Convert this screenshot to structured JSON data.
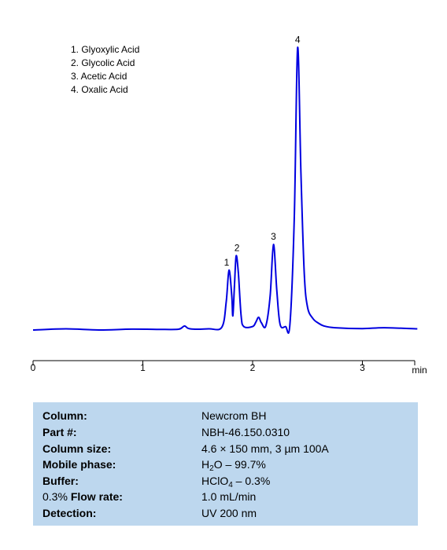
{
  "chart_data": {
    "type": "line",
    "xlabel": "min",
    "xlim": [
      0,
      3.5
    ],
    "ylim": [
      0,
      1
    ],
    "x_ticks": [
      "0",
      "1",
      "2",
      "3"
    ],
    "series": [
      {
        "color": "#0000e0",
        "x": [
          0.0,
          0.3,
          0.6,
          0.9,
          1.2,
          1.33,
          1.38,
          1.43,
          1.6,
          1.72,
          1.76,
          1.785,
          1.81,
          1.82,
          1.835,
          1.85,
          1.87,
          1.895,
          1.92,
          2.0,
          2.03,
          2.055,
          2.08,
          2.12,
          2.16,
          2.19,
          2.22,
          2.25,
          2.3,
          2.34,
          2.38,
          2.41,
          2.44,
          2.47,
          2.5,
          2.55,
          2.6,
          2.65,
          2.75,
          3.0,
          3.2,
          3.5
        ],
        "y": [
          0.0,
          0.004,
          0.0,
          0.003,
          0.002,
          0.003,
          0.014,
          0.004,
          0.004,
          0.01,
          0.1,
          0.21,
          0.12,
          0.05,
          0.16,
          0.26,
          0.2,
          0.05,
          0.012,
          0.012,
          0.028,
          0.045,
          0.025,
          0.014,
          0.12,
          0.3,
          0.14,
          0.02,
          0.012,
          0.02,
          0.4,
          0.99,
          0.55,
          0.2,
          0.08,
          0.04,
          0.024,
          0.014,
          0.008,
          0.005,
          0.008,
          0.004
        ]
      }
    ],
    "peaks": [
      {
        "label": "1",
        "x": 1.785,
        "y": 0.21
      },
      {
        "label": "2",
        "x": 1.85,
        "y": 0.26
      },
      {
        "label": "3",
        "x": 2.19,
        "y": 0.3
      },
      {
        "label": "4",
        "x": 2.41,
        "y": 0.99
      }
    ],
    "legend": [
      "1. Glyoxylic Acid",
      "2. Glycolic Acid",
      "3. Acetic Acid",
      "4. Oxalic Acid"
    ]
  },
  "info": {
    "column": {
      "label": "Column:",
      "value": "Newcrom BH"
    },
    "part": {
      "label": "Part #:",
      "value": "NBH-46.150.0310"
    },
    "size": {
      "label": "Column size:",
      "value": "4.6 × 150 mm, 3 µm  100A"
    },
    "mobile": {
      "label": "Mobile phase:",
      "pre": "H",
      "sub": "2",
      "post": "O – 99.7%"
    },
    "buffer": {
      "label": "Buffer:",
      "pre": "HClO",
      "sub": "4",
      "post": " – 0.3%"
    },
    "flow": {
      "label_prefix": "0.3% ",
      "label_bold": "Flow rate:",
      "value": "1.0 mL/min"
    },
    "detection": {
      "label": "Detection:",
      "value": "UV 200 nm"
    }
  },
  "colors": {
    "trace": "#0000e0",
    "panel": "#bdd7ee"
  }
}
